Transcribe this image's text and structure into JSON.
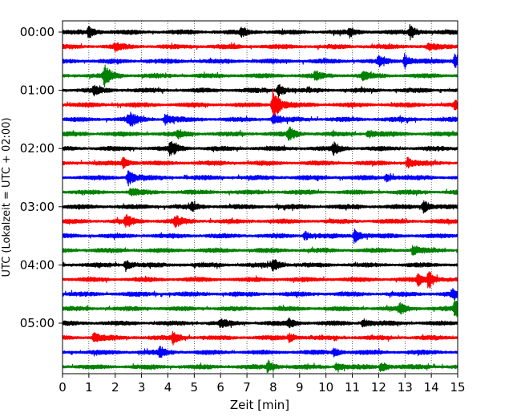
{
  "chart_data": {
    "type": "line",
    "title": "",
    "xlabel": "Zeit  [min]",
    "ylabel": "UTC (Lokalzeit = UTC + 02:00)",
    "xlim": [
      0,
      15
    ],
    "x_ticks": [
      "0",
      "1",
      "2",
      "3",
      "4",
      "5",
      "6",
      "7",
      "8",
      "9",
      "10",
      "11",
      "12",
      "13",
      "14",
      "15"
    ],
    "y_tick_labels": [
      "00:00",
      "01:00",
      "02:00",
      "03:00",
      "04:00",
      "05:00"
    ],
    "y_tick_rows": [
      0,
      4,
      8,
      12,
      16,
      20
    ],
    "grid_x": true,
    "trace_colors": [
      "#000000",
      "#ff0000",
      "#0000ff",
      "#008000"
    ],
    "trace_interval_min": 15,
    "num_traces": 24,
    "events": [
      {
        "row": 0,
        "x": 1.0,
        "amp": 7
      },
      {
        "row": 0,
        "x": 6.8,
        "amp": 5
      },
      {
        "row": 0,
        "x": 10.9,
        "amp": 5
      },
      {
        "row": 0,
        "x": 13.2,
        "amp": 8
      },
      {
        "row": 1,
        "x": 2.0,
        "amp": 4
      },
      {
        "row": 1,
        "x": 13.9,
        "amp": 4
      },
      {
        "row": 2,
        "x": 12.0,
        "amp": 5
      },
      {
        "row": 2,
        "x": 13.0,
        "amp": 8
      },
      {
        "row": 2,
        "x": 14.9,
        "amp": 10
      },
      {
        "row": 3,
        "x": 1.6,
        "amp": 12
      },
      {
        "row": 3,
        "x": 9.6,
        "amp": 4
      },
      {
        "row": 3,
        "x": 11.4,
        "amp": 4
      },
      {
        "row": 4,
        "x": 1.2,
        "amp": 5
      },
      {
        "row": 4,
        "x": 8.2,
        "amp": 8
      },
      {
        "row": 5,
        "x": 8.0,
        "amp": 22
      },
      {
        "row": 5,
        "x": 14.9,
        "amp": 5
      },
      {
        "row": 6,
        "x": 2.5,
        "amp": 4
      },
      {
        "row": 6,
        "x": 2.6,
        "amp": 5
      },
      {
        "row": 6,
        "x": 3.9,
        "amp": 7
      },
      {
        "row": 6,
        "x": 8.0,
        "amp": 6
      },
      {
        "row": 7,
        "x": 4.4,
        "amp": 4
      },
      {
        "row": 7,
        "x": 8.6,
        "amp": 7
      },
      {
        "row": 7,
        "x": 11.6,
        "amp": 5
      },
      {
        "row": 8,
        "x": 4.1,
        "amp": 9
      },
      {
        "row": 8,
        "x": 10.3,
        "amp": 6
      },
      {
        "row": 9,
        "x": 2.3,
        "amp": 6
      },
      {
        "row": 9,
        "x": 13.1,
        "amp": 6
      },
      {
        "row": 10,
        "x": 2.5,
        "amp": 9
      },
      {
        "row": 10,
        "x": 12.3,
        "amp": 4
      },
      {
        "row": 11,
        "x": 2.6,
        "amp": 4
      },
      {
        "row": 12,
        "x": 4.9,
        "amp": 4
      },
      {
        "row": 12,
        "x": 13.7,
        "amp": 8
      },
      {
        "row": 13,
        "x": 2.4,
        "amp": 7
      },
      {
        "row": 13,
        "x": 4.3,
        "amp": 6
      },
      {
        "row": 14,
        "x": 9.2,
        "amp": 5
      },
      {
        "row": 14,
        "x": 11.1,
        "amp": 9
      },
      {
        "row": 15,
        "x": 13.3,
        "amp": 5
      },
      {
        "row": 16,
        "x": 2.4,
        "amp": 6
      },
      {
        "row": 16,
        "x": 8.0,
        "amp": 7
      },
      {
        "row": 17,
        "x": 13.5,
        "amp": 6
      },
      {
        "row": 17,
        "x": 13.9,
        "amp": 10
      },
      {
        "row": 18,
        "x": 14.8,
        "amp": 6
      },
      {
        "row": 19,
        "x": 12.8,
        "amp": 6
      },
      {
        "row": 19,
        "x": 14.9,
        "amp": 12
      },
      {
        "row": 20,
        "x": 6.0,
        "amp": 4
      },
      {
        "row": 20,
        "x": 8.6,
        "amp": 5
      },
      {
        "row": 20,
        "x": 11.4,
        "amp": 5
      },
      {
        "row": 21,
        "x": 1.2,
        "amp": 6
      },
      {
        "row": 21,
        "x": 4.2,
        "amp": 7
      },
      {
        "row": 21,
        "x": 8.6,
        "amp": 5
      },
      {
        "row": 22,
        "x": 3.7,
        "amp": 5
      },
      {
        "row": 22,
        "x": 10.3,
        "amp": 5
      },
      {
        "row": 23,
        "x": 7.8,
        "amp": 7
      },
      {
        "row": 23,
        "x": 10.4,
        "amp": 5
      },
      {
        "row": 23,
        "x": 12.1,
        "amp": 6
      }
    ]
  }
}
